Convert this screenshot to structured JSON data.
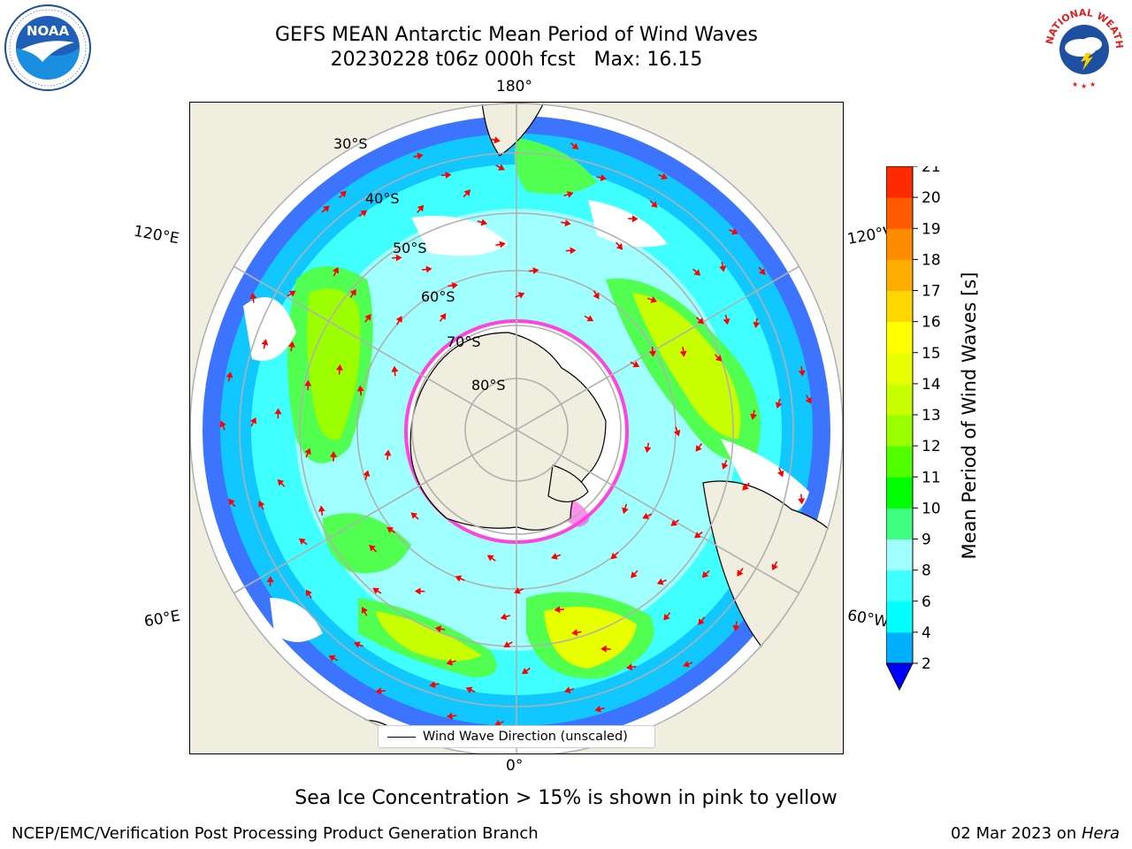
{
  "title": {
    "line1": "GEFS MEAN Antarctic Mean Period of Wind Waves",
    "line2": "20230228 t06z 000h fcst   Max: 16.15"
  },
  "logos": {
    "noaa": {
      "icon": "noaa-seagull-logo",
      "text": "NOAA",
      "ring_text": "NATIONAL OCEANIC AND ATMOSPHERIC ADMINISTRATION · U.S. DEPARTMENT OF COMMERCE"
    },
    "nws": {
      "icon": "nws-storm-logo",
      "ring_text": "NATIONAL WEATHER SERVICE"
    }
  },
  "map": {
    "projection": "south-polar-stereographic",
    "lat_labels": [
      "30°S",
      "40°S",
      "50°S",
      "60°S",
      "70°S",
      "80°S"
    ],
    "lon_labels": {
      "top": "180°",
      "bottom": "0°",
      "left_upper": "120°E",
      "left_lower": "60°E",
      "right_upper": "120°W",
      "right_lower": "60°W"
    },
    "legend_label": "Wind Wave Direction (unscaled)",
    "colors": {
      "land": "#efeedf",
      "grid": "#b0b0b0",
      "arrows": "#ff0000",
      "sea_ice_low": "#ff44dd",
      "sea_ice_high": "#ffff44"
    }
  },
  "colorbar": {
    "label": "Mean Period of Wind Waves [s]",
    "ticks": [
      "2",
      "4",
      "6",
      "8",
      "9",
      "10",
      "11",
      "12",
      "13",
      "14",
      "15",
      "16",
      "17",
      "18",
      "19",
      "20",
      "21"
    ],
    "colors": [
      "#0000ff",
      "#0060ff",
      "#00b0ff",
      "#00ffff",
      "#40ffff",
      "#a0ffff",
      "#40ff80",
      "#00ff00",
      "#50ff00",
      "#9cff00",
      "#c8ff00",
      "#e8ff00",
      "#ffff00",
      "#ffd700",
      "#ffae00",
      "#ff8c00",
      "#ff5a00",
      "#ff2a00",
      "#ff0000"
    ]
  },
  "note": "Sea Ice Concentration > 15% is shown in pink to yellow",
  "footer": {
    "left": "NCEP/EMC/Verification Post Processing Product Generation Branch",
    "right_date": "02 Mar 2023 on ",
    "right_machine": "Hera"
  }
}
